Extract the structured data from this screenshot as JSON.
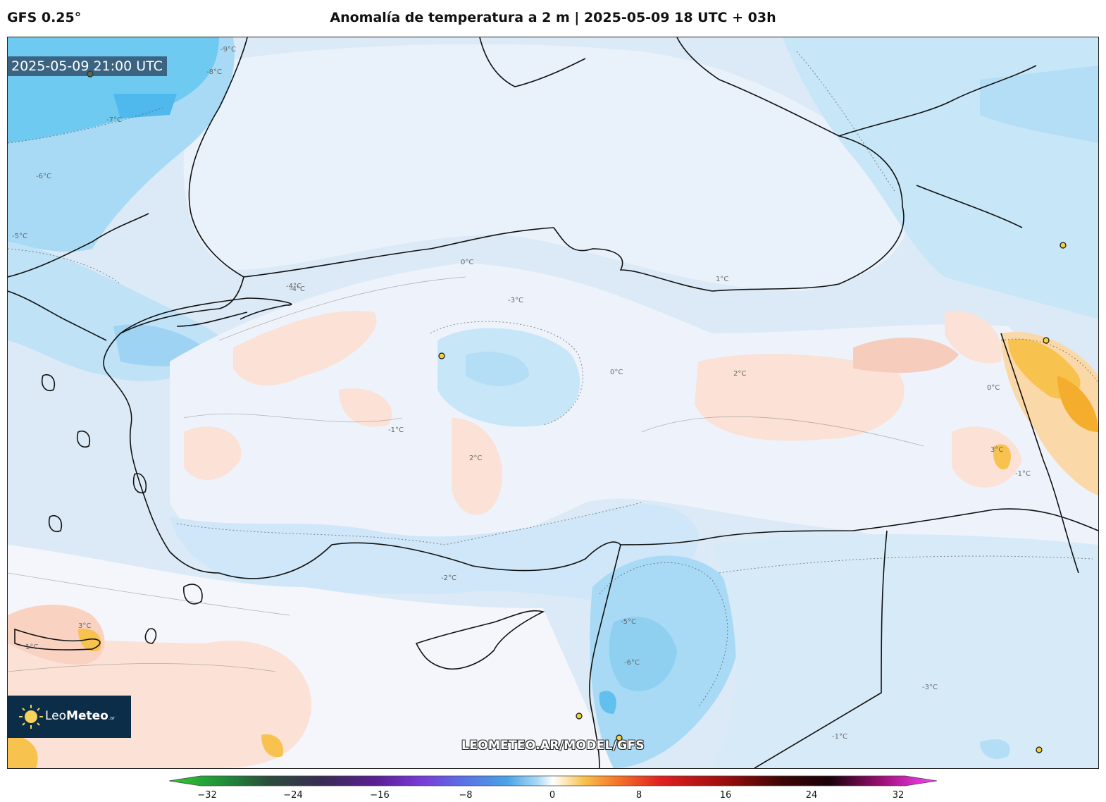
{
  "header": {
    "model": "GFS 0.25°",
    "title": "Anomalía de temperatura a 2 m | 2025-05-09 18 UTC + 03h"
  },
  "map": {
    "valid_time": "2025-05-09 21:00 UTC",
    "watermark": "LEOMETEO.AR/MODEL/GFS",
    "contour_labels": [
      "-9°C",
      "-8°C",
      "-7°C",
      "-6°C",
      "-5°C",
      "-4°C",
      "-3°C",
      "-2°C",
      "-1°C",
      "0°C",
      "1°C",
      "2°C",
      "3°C"
    ],
    "colors": {
      "cold_strong": "#62c6f2",
      "cold": "#a8daf5",
      "cool": "#d2e9f7",
      "neutral": "#f4f6fb",
      "warm": "#fbe1d6",
      "hot": "#f8c24e",
      "coastline": "#111111"
    }
  },
  "logo": {
    "name_light": "Leo",
    "name_bold": "Meteo",
    "suffix": ".ar"
  },
  "colorbar": {
    "min": -32,
    "max": 32,
    "ticks": [
      "−32",
      "−24",
      "−16",
      "−8",
      "0",
      "8",
      "16",
      "24",
      "32"
    ]
  }
}
